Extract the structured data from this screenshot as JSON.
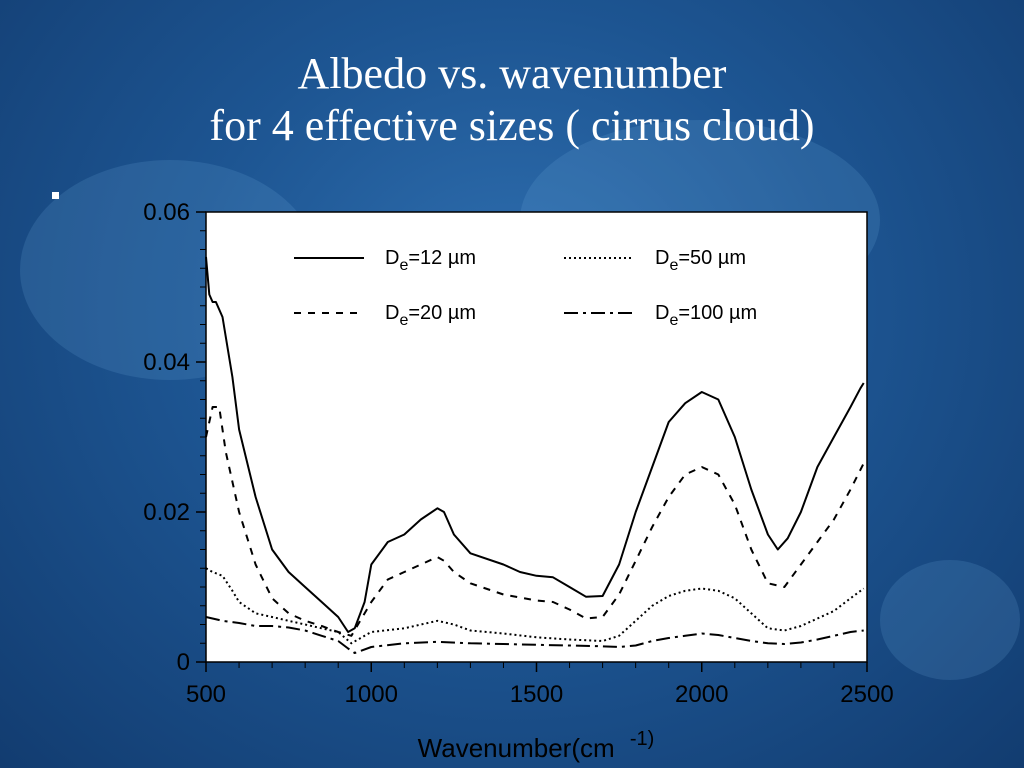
{
  "slide": {
    "title_line1": "Albedo vs. wavenumber",
    "title_line2": "for 4 effective sizes ( cirrus cloud)"
  },
  "chart_data": {
    "type": "line",
    "title": "",
    "xlabel": "Wavenumber(cm",
    "xlabel_sup": "-1)",
    "ylabel": "",
    "xlim": [
      500,
      2500
    ],
    "ylim": [
      0,
      0.06
    ],
    "xticks": [
      500,
      1000,
      1500,
      2000,
      2500
    ],
    "xtick_labels": [
      "500",
      "1000",
      "1500",
      "2000",
      "2500"
    ],
    "yticks": [
      0,
      0.02,
      0.04,
      0.06
    ],
    "ytick_labels": [
      "0",
      "0.02",
      "0.04",
      "0.06"
    ],
    "grid": false,
    "legend_position": "top",
    "series": [
      {
        "name": "De=12 µm",
        "legend_base": "D",
        "legend_sub": "e",
        "legend_rest": "=12 µm",
        "dash": "solid",
        "x": [
          500,
          510,
          520,
          530,
          550,
          580,
          600,
          650,
          700,
          750,
          800,
          850,
          900,
          930,
          950,
          980,
          1000,
          1050,
          1100,
          1150,
          1200,
          1220,
          1250,
          1300,
          1400,
          1450,
          1500,
          1550,
          1600,
          1650,
          1700,
          1750,
          1800,
          1850,
          1900,
          1950,
          2000,
          2050,
          2100,
          2150,
          2200,
          2230,
          2260,
          2300,
          2350,
          2400,
          2450,
          2480,
          2490
        ],
        "y": [
          0.054,
          0.049,
          0.048,
          0.048,
          0.046,
          0.038,
          0.031,
          0.022,
          0.015,
          0.012,
          0.01,
          0.008,
          0.006,
          0.004,
          0.0045,
          0.008,
          0.013,
          0.016,
          0.017,
          0.019,
          0.0205,
          0.02,
          0.017,
          0.0145,
          0.013,
          0.012,
          0.0115,
          0.0113,
          0.01,
          0.0087,
          0.0088,
          0.013,
          0.02,
          0.026,
          0.032,
          0.0345,
          0.036,
          0.035,
          0.03,
          0.023,
          0.017,
          0.015,
          0.0165,
          0.02,
          0.026,
          0.03,
          0.034,
          0.0365,
          0.0372
        ]
      },
      {
        "name": "De=20 µm",
        "legend_base": "D",
        "legend_sub": "e",
        "legend_rest": "=20 µm",
        "dash": "dashed",
        "x": [
          500,
          520,
          540,
          560,
          600,
          650,
          700,
          750,
          800,
          850,
          900,
          940,
          960,
          1000,
          1050,
          1100,
          1150,
          1200,
          1220,
          1250,
          1300,
          1400,
          1500,
          1550,
          1600,
          1650,
          1700,
          1750,
          1800,
          1850,
          1900,
          1950,
          2000,
          2050,
          2100,
          2150,
          2200,
          2250,
          2300,
          2350,
          2400,
          2450,
          2490
        ],
        "y": [
          0.03,
          0.034,
          0.034,
          0.028,
          0.02,
          0.013,
          0.0085,
          0.0065,
          0.0055,
          0.0048,
          0.004,
          0.0035,
          0.005,
          0.008,
          0.011,
          0.012,
          0.013,
          0.014,
          0.0135,
          0.012,
          0.0105,
          0.009,
          0.0082,
          0.008,
          0.007,
          0.0058,
          0.006,
          0.009,
          0.0135,
          0.018,
          0.022,
          0.025,
          0.026,
          0.025,
          0.021,
          0.015,
          0.0105,
          0.01,
          0.013,
          0.016,
          0.019,
          0.023,
          0.0265
        ]
      },
      {
        "name": "De=50 µm",
        "legend_base": "D",
        "legend_sub": "e",
        "legend_rest": "=50 µm",
        "dash": "dotted",
        "x": [
          500,
          520,
          550,
          580,
          600,
          650,
          700,
          750,
          800,
          850,
          900,
          940,
          960,
          1000,
          1100,
          1200,
          1250,
          1300,
          1400,
          1500,
          1600,
          1700,
          1750,
          1800,
          1850,
          1900,
          1950,
          2000,
          2050,
          2100,
          2150,
          2200,
          2250,
          2300,
          2350,
          2400,
          2450,
          2490
        ],
        "y": [
          0.0125,
          0.012,
          0.0115,
          0.0095,
          0.008,
          0.0065,
          0.006,
          0.0055,
          0.005,
          0.0045,
          0.004,
          0.0025,
          0.003,
          0.004,
          0.0045,
          0.0055,
          0.005,
          0.0042,
          0.0038,
          0.0033,
          0.003,
          0.0028,
          0.0035,
          0.0055,
          0.0075,
          0.0088,
          0.0095,
          0.0098,
          0.0095,
          0.0085,
          0.0065,
          0.0045,
          0.0042,
          0.0048,
          0.0058,
          0.0068,
          0.0085,
          0.0098
        ]
      },
      {
        "name": "De=100 µm",
        "legend_base": "D",
        "legend_sub": "e",
        "legend_rest": "=100 µm",
        "dash": "dashdot",
        "x": [
          500,
          550,
          600,
          650,
          700,
          750,
          800,
          850,
          900,
          930,
          950,
          1000,
          1100,
          1200,
          1300,
          1400,
          1500,
          1600,
          1700,
          1750,
          1800,
          1850,
          1900,
          1950,
          2000,
          2050,
          2100,
          2150,
          2200,
          2250,
          2300,
          2350,
          2400,
          2450,
          2490
        ],
        "y": [
          0.006,
          0.0055,
          0.0052,
          0.0048,
          0.0048,
          0.0046,
          0.0042,
          0.0035,
          0.0028,
          0.0018,
          0.0012,
          0.002,
          0.0025,
          0.0027,
          0.0025,
          0.0024,
          0.0023,
          0.0022,
          0.0021,
          0.002,
          0.0022,
          0.0028,
          0.0032,
          0.0035,
          0.0038,
          0.0036,
          0.0032,
          0.0028,
          0.0025,
          0.0024,
          0.0026,
          0.003,
          0.0035,
          0.004,
          0.0042
        ]
      }
    ]
  }
}
